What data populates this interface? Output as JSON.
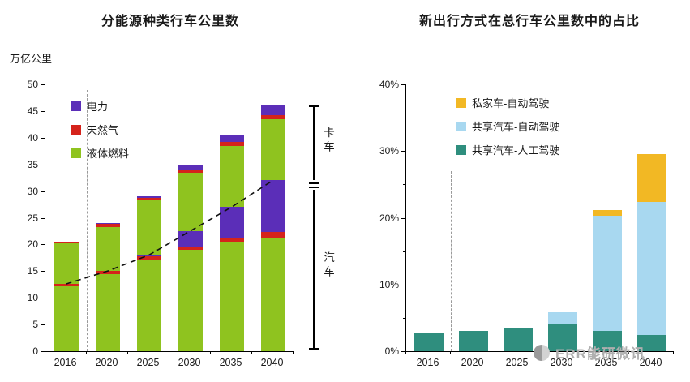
{
  "colors": {
    "electric": "#5B2EB8",
    "natural_gas": "#D5231B",
    "liquid_fuel": "#8FC31F",
    "private_av": "#F2B824",
    "shared_av": "#A8D8F0",
    "shared_human": "#2F8E7E",
    "axis": "#000000",
    "dashed_guide": "#9A9A9A",
    "trend_line": "#111111",
    "watermark": "#AEAEAE"
  },
  "left_chart": {
    "title": "分能源种类行车公里数",
    "unit_label": "万亿公里",
    "legend": [
      {
        "label": "电力",
        "color_key": "electric"
      },
      {
        "label": "天然气",
        "color_key": "natural_gas"
      },
      {
        "label": "液体燃料",
        "color_key": "liquid_fuel"
      }
    ],
    "bracket": {
      "top_label": "卡车",
      "bottom_label": "汽车"
    }
  },
  "right_chart": {
    "title": "新出行方式在总行车公里数中的占比",
    "legend": [
      {
        "label": "私家车-自动驾驶",
        "color_key": "private_av"
      },
      {
        "label": "共享汽车-自动驾驶",
        "color_key": "shared_av"
      },
      {
        "label": "共享汽车-人工驾驶",
        "color_key": "shared_human"
      }
    ]
  },
  "watermark": {
    "text": "ERR能研微讯"
  },
  "chart_data": [
    {
      "type": "bar",
      "stacked": true,
      "title": "分能源种类行车公里数",
      "ylabel": "万亿公里",
      "ylim": [
        0,
        50
      ],
      "yticks": [
        0,
        5,
        10,
        15,
        20,
        25,
        30,
        35,
        40,
        45,
        50
      ],
      "categories": [
        "2016",
        "2020",
        "2025",
        "2030",
        "2035",
        "2040"
      ],
      "series": [
        {
          "name": "汽车-液体燃料",
          "color_key": "liquid_fuel",
          "values": [
            12.2,
            14.4,
            17.2,
            19.0,
            20.5,
            21.3
          ]
        },
        {
          "name": "汽车-天然气",
          "color_key": "natural_gas",
          "values": [
            0.4,
            0.6,
            0.6,
            0.6,
            0.7,
            1.0
          ]
        },
        {
          "name": "汽车-电力",
          "color_key": "electric",
          "values": [
            0,
            0,
            0.2,
            2.9,
            5.8,
            9.7
          ]
        },
        {
          "name": "卡车-液体燃料",
          "color_key": "liquid_fuel",
          "values": [
            7.8,
            8.3,
            10.2,
            11.0,
            11.4,
            11.4
          ]
        },
        {
          "name": "卡车-天然气",
          "color_key": "natural_gas",
          "values": [
            0.1,
            0.5,
            0.5,
            0.6,
            0.8,
            0.8
          ]
        },
        {
          "name": "卡车-电力",
          "color_key": "electric",
          "values": [
            0,
            0.2,
            0.3,
            0.7,
            1.3,
            1.8
          ]
        }
      ],
      "totals": [
        20.5,
        24.0,
        29.0,
        34.8,
        40.5,
        46.0
      ],
      "trend_line_dashed": {
        "name": "汽车/卡车分界线",
        "values": [
          12.6,
          15.0,
          18.0,
          22.5,
          27.0,
          32.0
        ]
      },
      "vline": {
        "between": [
          "2016",
          "2020"
        ],
        "top_value": 49
      },
      "bracket": {
        "top_label": "卡车",
        "bottom_label": "汽车",
        "split_value": 32,
        "top_value": 46
      },
      "legend_position": "upper-left-inside",
      "grid": false
    },
    {
      "type": "bar",
      "stacked": true,
      "title": "新出行方式在总行车公里数中的占比",
      "ylabel": "",
      "ylim": [
        0,
        40
      ],
      "yticks": [
        0,
        10,
        20,
        30,
        40
      ],
      "ytick_suffix": "%",
      "minor_ytick_step": 5,
      "categories": [
        "2016",
        "2020",
        "2025",
        "2030",
        "2035",
        "2040"
      ],
      "series": [
        {
          "name": "共享汽车-人工驾驶",
          "color_key": "shared_human",
          "values": [
            2.8,
            3.0,
            3.5,
            4.0,
            3.0,
            2.4
          ]
        },
        {
          "name": "共享汽车-自动驾驶",
          "color_key": "shared_av",
          "values": [
            0,
            0,
            0,
            1.8,
            17.3,
            20.0
          ]
        },
        {
          "name": "私家车-自动驾驶",
          "color_key": "private_av",
          "values": [
            0,
            0,
            0,
            0,
            0.9,
            7.1
          ]
        }
      ],
      "totals": [
        2.8,
        3.0,
        3.5,
        5.8,
        21.2,
        29.5
      ],
      "vline": {
        "between": [
          "2016",
          "2020"
        ],
        "top_value": 27
      },
      "legend_position": "upper-left-inside",
      "grid": false
    }
  ]
}
